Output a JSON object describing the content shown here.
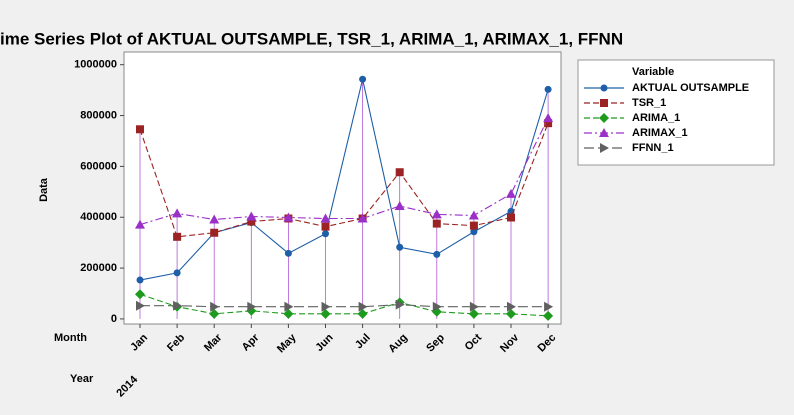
{
  "chart_data": {
    "type": "line",
    "title": "ime Series Plot of AKTUAL OUTSAMPLE, TSR_1, ARIMA_1, ARIMAX_1, FFNN",
    "y_label": "Data",
    "x_label": "Month",
    "year_label": "Year",
    "year": "2014",
    "legend_title": "Variable",
    "categories": [
      "Jan",
      "Feb",
      "Mar",
      "Apr",
      "May",
      "Jun",
      "Jul",
      "Aug",
      "Sep",
      "Oct",
      "Nov",
      "Dec"
    ],
    "ylim": [
      -20000,
      1050000
    ],
    "yticks": [
      0,
      200000,
      400000,
      600000,
      800000,
      1000000
    ],
    "drop_lines": true,
    "series": [
      {
        "name": "AKTUAL OUTSAMPLE",
        "color": "#1f5fa8",
        "marker": "circle",
        "dash": "solid",
        "values": [
          153000,
          181000,
          339000,
          379000,
          258000,
          335000,
          943000,
          282000,
          254000,
          343000,
          423000,
          903000
        ]
      },
      {
        "name": "TSR_1",
        "color": "#9b2323",
        "marker": "square",
        "dash": "dashed",
        "values": [
          746000,
          323000,
          339000,
          383000,
          395000,
          363000,
          395000,
          577000,
          375000,
          367000,
          399000,
          770000
        ]
      },
      {
        "name": "ARIMA_1",
        "color": "#1e9b1e",
        "marker": "diamond",
        "dash": "dashed",
        "values": [
          97000,
          48000,
          20000,
          32000,
          20000,
          20000,
          20000,
          65000,
          28000,
          20000,
          20000,
          12000
        ]
      },
      {
        "name": "ARIMAX_1",
        "color": "#9b30c9",
        "marker": "triangle",
        "dash": "dashdot",
        "values": [
          371000,
          415000,
          391000,
          403000,
          399000,
          395000,
          395000,
          444000,
          411000,
          407000,
          492000,
          790000
        ]
      },
      {
        "name": "FFNN_1",
        "color": "#606060",
        "marker": "right-triangle",
        "dash": "longdash",
        "values": [
          52000,
          52000,
          48000,
          48000,
          48000,
          48000,
          48000,
          56000,
          48000,
          48000,
          48000,
          48000
        ]
      }
    ]
  }
}
